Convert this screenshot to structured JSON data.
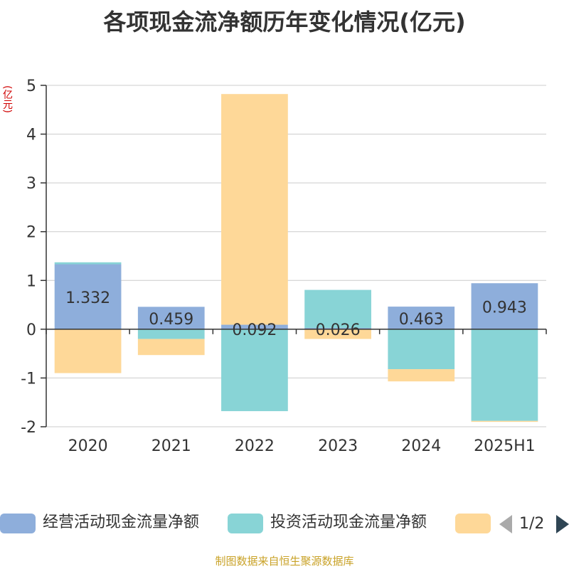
{
  "title": "各项现金流净额历年变化情况(亿元)",
  "unit_label": "(亿元)",
  "source": "制图数据来自恒生聚源数据库",
  "legend": {
    "pager_text": "1/2"
  },
  "colors": {
    "operating": "#8eaedb",
    "investing": "#88d4d6",
    "financing": "#fed898",
    "axis": "#333333",
    "grid": "#cccccc"
  },
  "chart_data": {
    "type": "bar",
    "stacked": true,
    "title": "各项现金流净额历年变化情况(亿元)",
    "ylabel": "(亿元)",
    "categories": [
      "2020",
      "2021",
      "2022",
      "2023",
      "2024",
      "2025H1"
    ],
    "ylim": [
      -2,
      5
    ],
    "yticks": [
      -2,
      -1,
      0,
      1,
      2,
      3,
      4,
      5
    ],
    "grid": true,
    "legend_position": "bottom",
    "series": [
      {
        "name": "经营活动现金流量净额",
        "key": "operating",
        "values": [
          1.332,
          0.459,
          0.092,
          0.026,
          0.463,
          0.943
        ],
        "labels": [
          "1.332",
          "0.459",
          "0.092",
          "0.026",
          "0.463",
          "0.943"
        ]
      },
      {
        "name": "投资活动现金流量净额",
        "key": "investing",
        "values": [
          0.04,
          -0.2,
          -1.68,
          0.78,
          -0.82,
          -1.88
        ]
      },
      {
        "name": "",
        "key": "financing",
        "values": [
          -0.9,
          -0.33,
          4.73,
          -0.2,
          -0.25,
          -0.02
        ]
      }
    ]
  }
}
